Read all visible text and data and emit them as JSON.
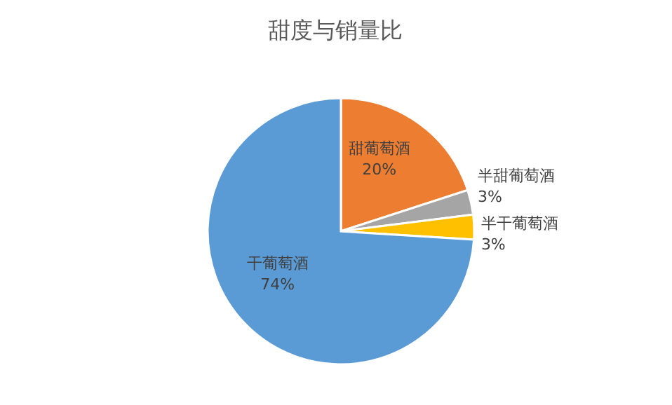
{
  "chart_data": {
    "type": "pie",
    "title": "甜度与销量比",
    "categories": [
      "甜葡萄酒",
      "半甜葡萄酒",
      "半干葡萄酒",
      "干葡萄酒"
    ],
    "values": [
      20,
      3,
      3,
      74
    ],
    "colors": [
      "#ed7d31",
      "#a5a5a5",
      "#ffc000",
      "#5b9bd5"
    ],
    "value_labels": [
      "20%",
      "3%",
      "3%",
      "74%"
    ],
    "legend": false
  }
}
